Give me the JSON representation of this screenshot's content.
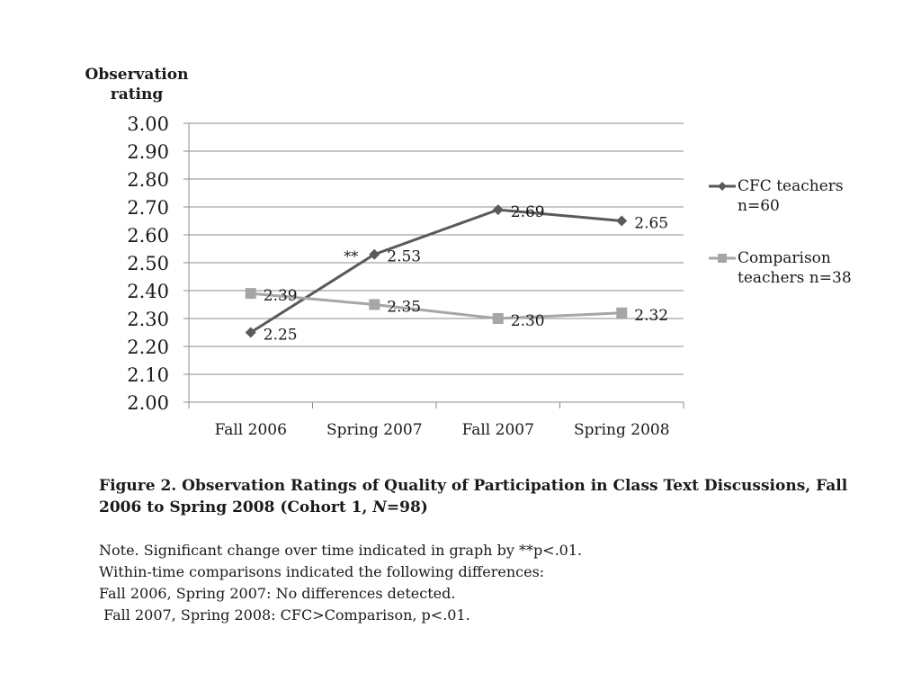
{
  "chart_data": {
    "type": "line",
    "xlabel": "",
    "ylabel": "Observation rating",
    "ylabel_lines": [
      "Observation",
      "rating"
    ],
    "ylim": [
      2.0,
      3.0
    ],
    "yticks": [
      "3.00",
      "2.90",
      "2.80",
      "2.70",
      "2.60",
      "2.50",
      "2.40",
      "2.30",
      "2.20",
      "2.10",
      "2.00"
    ],
    "categories": [
      "Fall 2006",
      "Spring 2007",
      "Fall 2007",
      "Spring 2008"
    ],
    "grid": true,
    "legend_position": "right",
    "series": [
      {
        "name": "CFC teachers n=60",
        "name_lines": [
          "CFC teachers",
          "n=60"
        ],
        "values": [
          2.25,
          2.53,
          2.69,
          2.65
        ],
        "labels": [
          "2.25",
          "2.53",
          "2.69",
          "2.65"
        ],
        "color": "#5a5a5a",
        "marker": "diamond"
      },
      {
        "name": "Comparison teachers n=38",
        "name_lines": [
          "Comparison",
          "teachers n=38"
        ],
        "values": [
          2.39,
          2.35,
          2.3,
          2.32
        ],
        "labels": [
          "2.39",
          "2.35",
          "2.30",
          "2.32"
        ],
        "color": "#a6a6a6",
        "marker": "square"
      }
    ],
    "annotations": [
      {
        "text": "**",
        "category": "Spring 2007",
        "series": "CFC teachers n=60"
      }
    ]
  },
  "caption": {
    "text_before": "Figure 2. Observation Ratings of Quality of Participation in Class Text Discussions, Fall 2006 to Spring 2008 (Cohort 1, ",
    "n_italic": "N",
    "text_after": "=98)"
  },
  "notes": [
    "Note. Significant change over time indicated in graph by **p<.01.",
    "Within-time comparisons indicated the following differences:",
    "Fall 2006, Spring 2007: No differences detected.",
    " Fall 2007, Spring 2008: CFC>Comparison, p<.01."
  ]
}
